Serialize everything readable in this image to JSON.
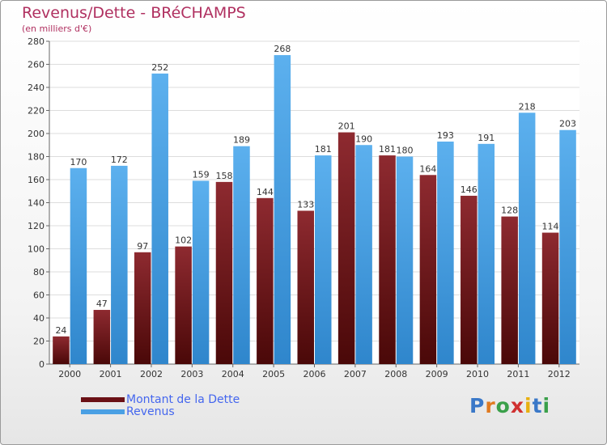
{
  "chart_data": {
    "type": "bar",
    "title": "Revenus/Dette - BRéCHAMPS",
    "subtitle": "(en milliers d'€)",
    "categories": [
      "2000",
      "2001",
      "2002",
      "2003",
      "2004",
      "2005",
      "2006",
      "2007",
      "2008",
      "2009",
      "2010",
      "2011",
      "2012"
    ],
    "series": [
      {
        "name": "Montant de la Dette",
        "color": "#7a1a20",
        "values": [
          24,
          47,
          97,
          102,
          158,
          144,
          133,
          201,
          181,
          164,
          146,
          128,
          114
        ]
      },
      {
        "name": "Revenus",
        "color": "#4aa0e4",
        "values": [
          170,
          172,
          252,
          159,
          189,
          268,
          181,
          190,
          180,
          193,
          191,
          218,
          203
        ]
      }
    ],
    "ylim": [
      0,
      280
    ],
    "yticks": [
      0,
      20,
      40,
      60,
      80,
      100,
      120,
      140,
      160,
      180,
      200,
      220,
      240,
      260,
      280
    ],
    "grid": true,
    "legend_position": "bottom-left"
  },
  "logo_text": "Proxiti"
}
